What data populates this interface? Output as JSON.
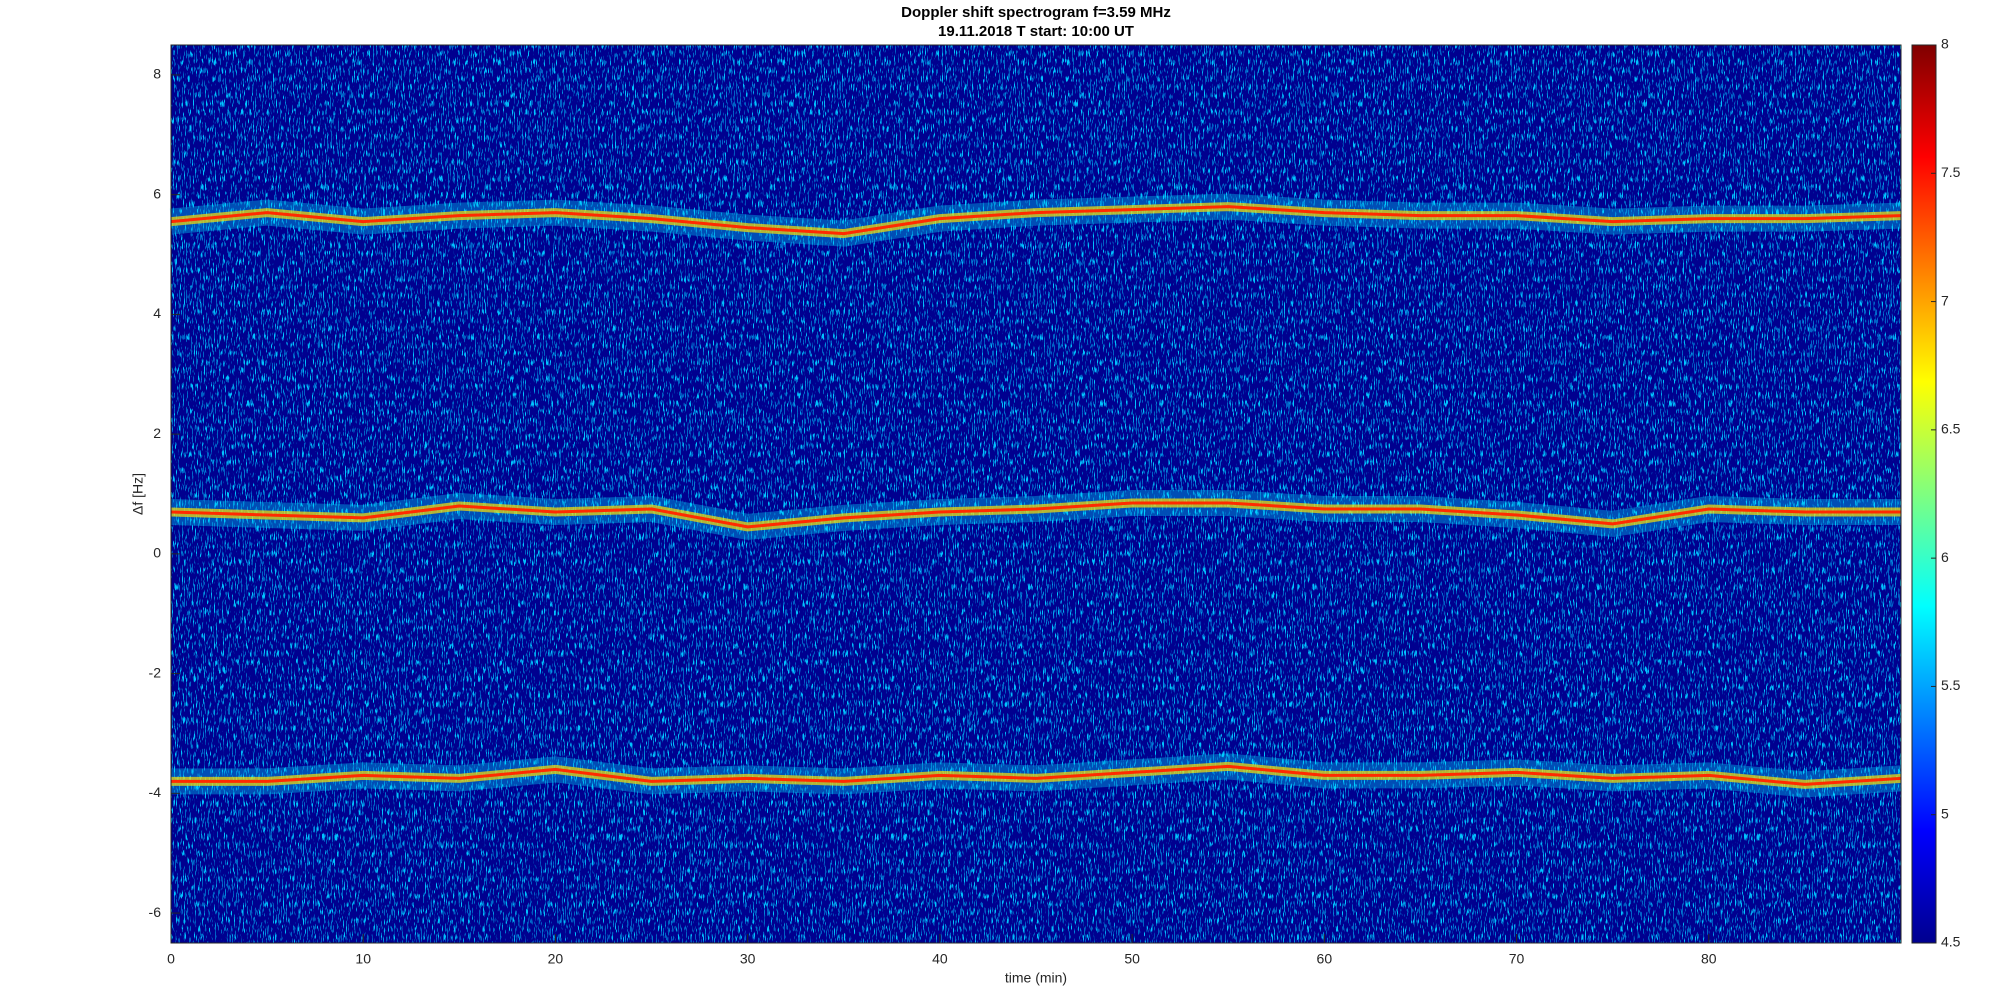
{
  "chart_data": {
    "type": "spectrogram",
    "title": "Doppler shift spectrogram f=3.59 MHz",
    "subtitle": "19.11.2018   T start: 10:00 UT",
    "x_label": "time (min)",
    "y_label": "Δf [Hz]",
    "xlim": [
      0,
      90
    ],
    "xticks": [
      0,
      10,
      20,
      30,
      40,
      50,
      60,
      70,
      80
    ],
    "ylim": [
      -6.5,
      8.5
    ],
    "yticks": [
      -6,
      -4,
      -2,
      0,
      2,
      4,
      6,
      8
    ],
    "x": [
      0,
      5,
      10,
      15,
      20,
      25,
      30,
      35,
      40,
      45,
      50,
      55,
      60,
      65,
      70,
      75,
      80,
      85,
      90
    ],
    "series": [
      {
        "color": "#ff2a00",
        "values": [
          5.55,
          5.7,
          5.55,
          5.65,
          5.7,
          5.6,
          5.45,
          5.35,
          5.6,
          5.7,
          5.75,
          5.8,
          5.7,
          5.65,
          5.65,
          5.55,
          5.6,
          5.6,
          5.65
        ]
      },
      {
        "color": "#ff2a00",
        "values": [
          0.7,
          0.65,
          0.6,
          0.8,
          0.7,
          0.75,
          0.45,
          0.6,
          0.7,
          0.75,
          0.85,
          0.85,
          0.75,
          0.75,
          0.65,
          0.5,
          0.75,
          0.7,
          0.7
        ]
      },
      {
        "color": "#ff2a00",
        "values": [
          -3.8,
          -3.8,
          -3.7,
          -3.75,
          -3.6,
          -3.8,
          -3.75,
          -3.8,
          -3.7,
          -3.75,
          -3.65,
          -3.55,
          -3.7,
          -3.7,
          -3.65,
          -3.75,
          -3.7,
          -3.85,
          -3.75
        ]
      }
    ],
    "colorbar": {
      "lim": [
        4.5,
        8
      ],
      "ticks": [
        4.5,
        5,
        5.5,
        6,
        6.5,
        7,
        7.5,
        8
      ]
    }
  }
}
